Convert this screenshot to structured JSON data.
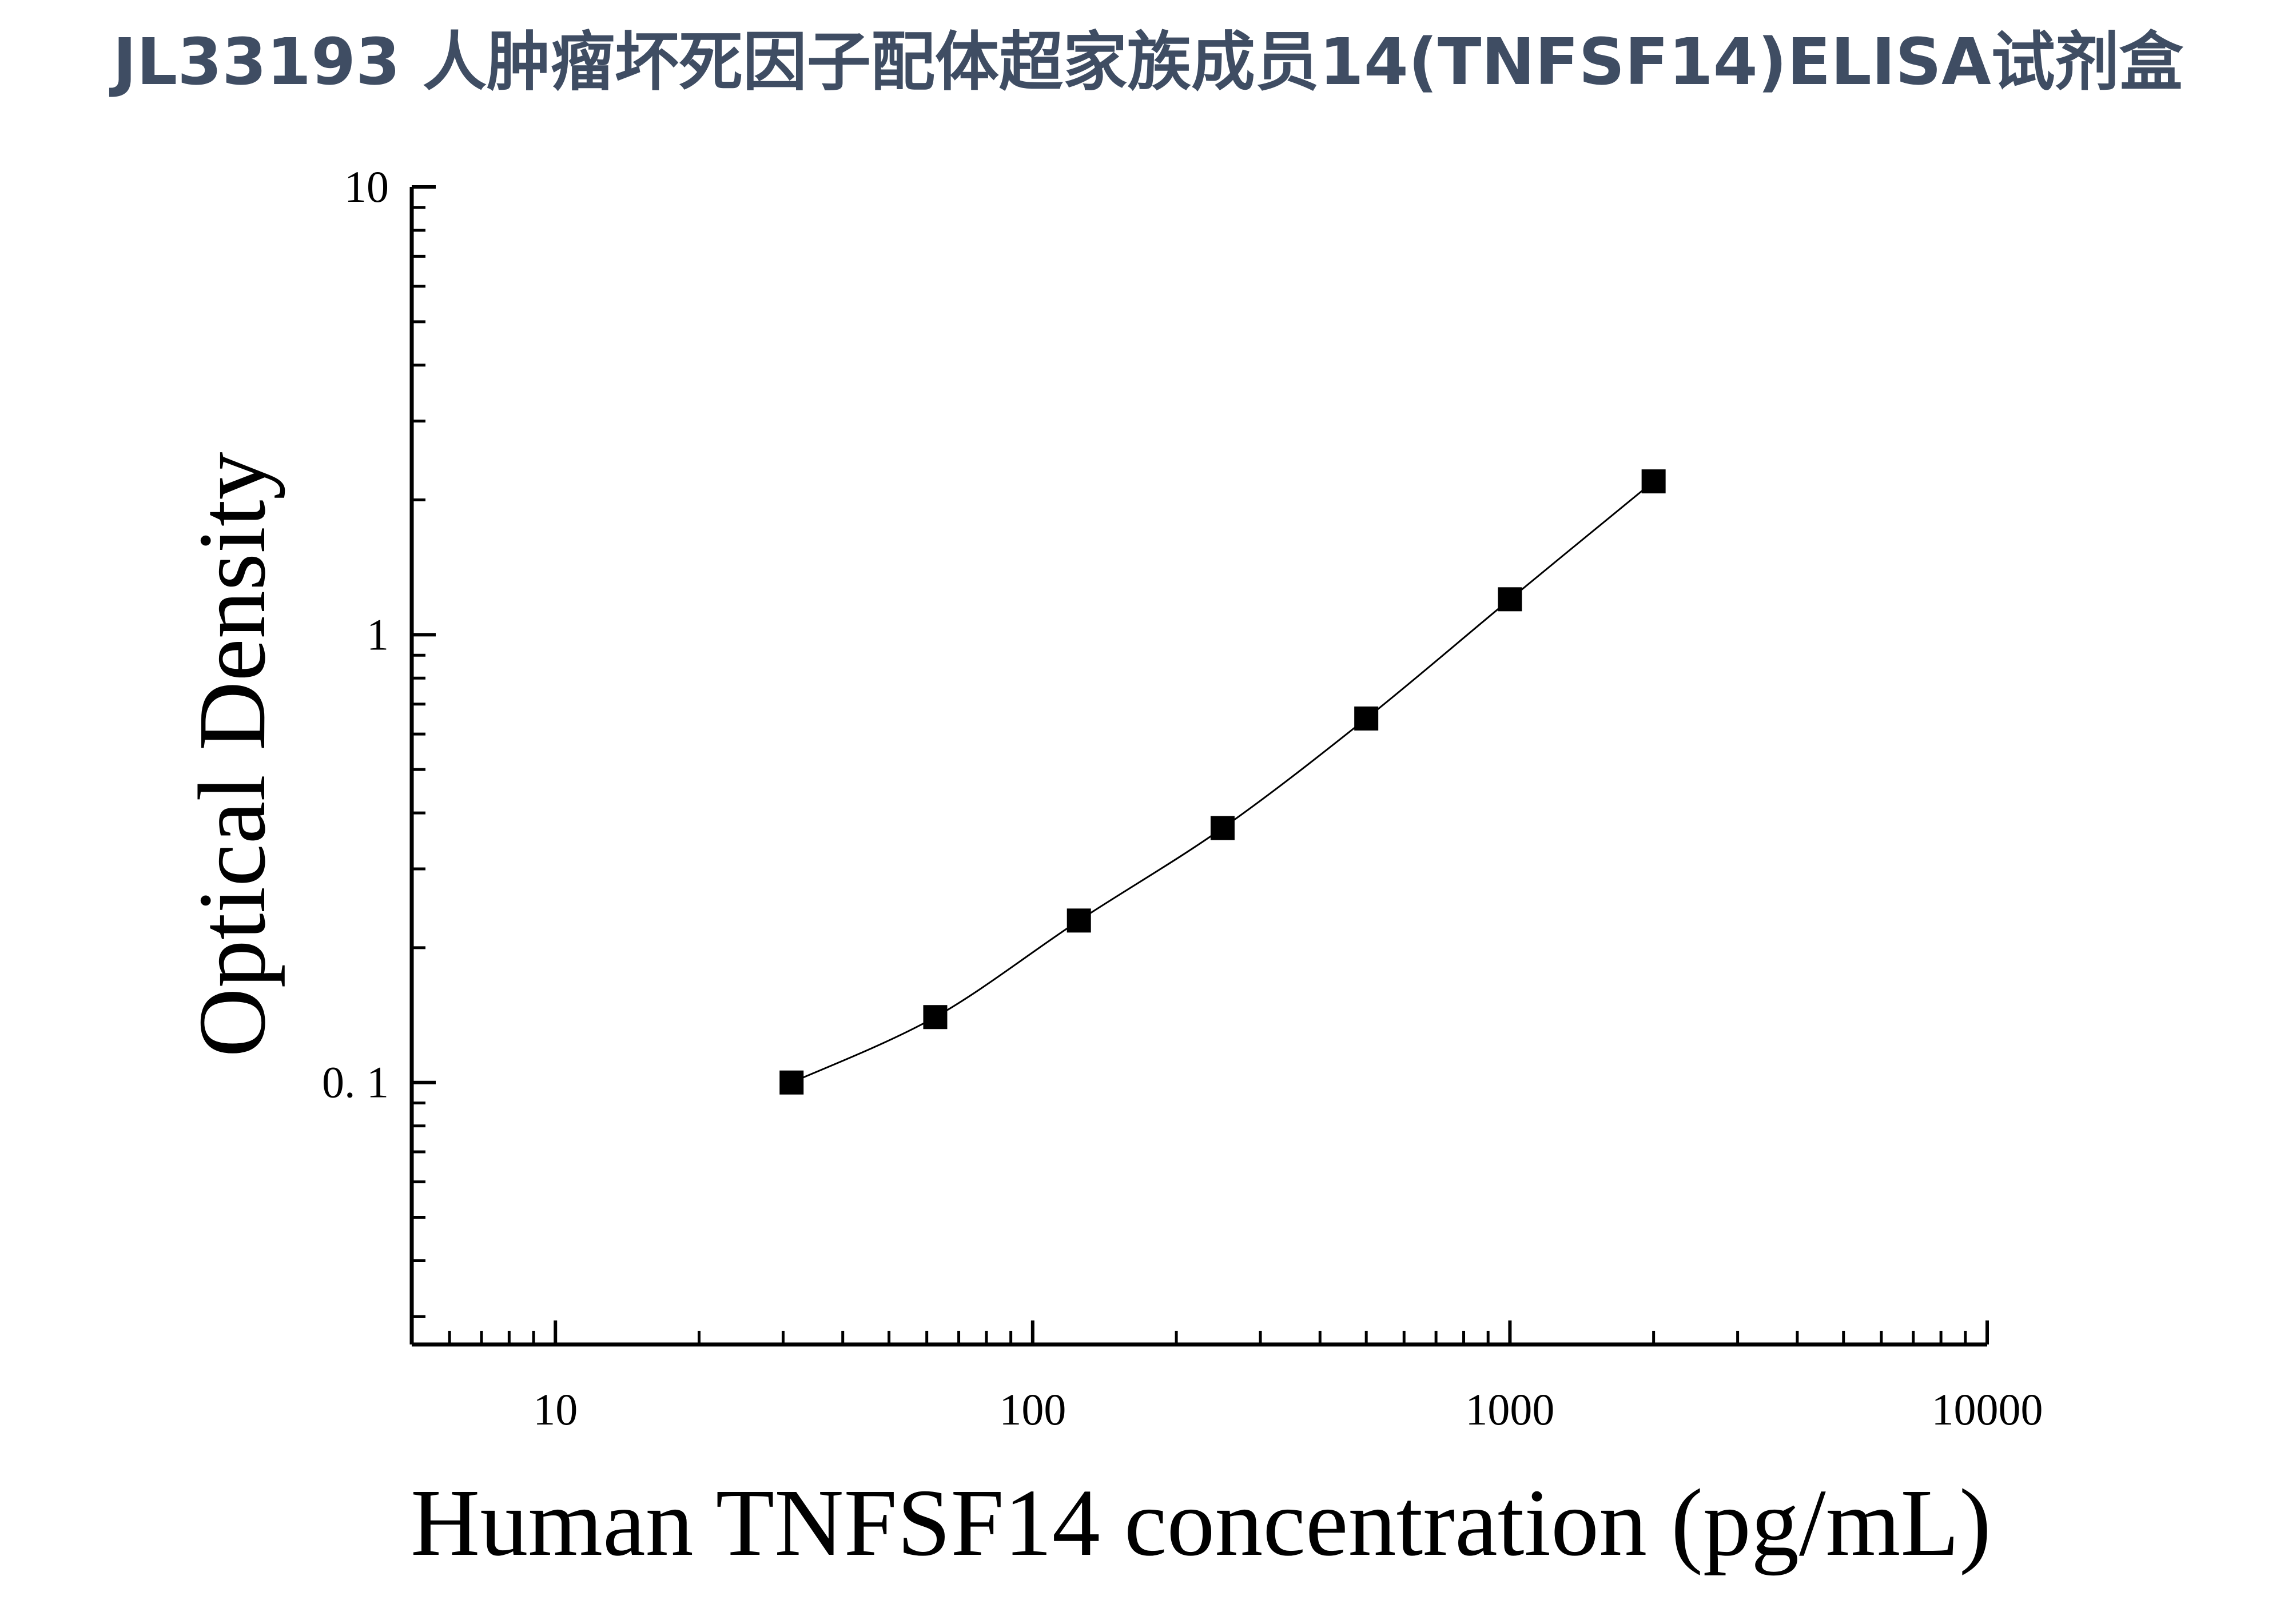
{
  "page": {
    "title": "JL33193 人肿瘤坏死因子配体超家族成员14(TNFSF14)ELISA试剂盒"
  },
  "chart_data": {
    "type": "scatter",
    "x_scale": "log",
    "y_scale": "log",
    "xlabel": "Human TNFSF14 concentration (pg/mL)",
    "ylabel": "Optical Density",
    "xlim": [
      5,
      10000
    ],
    "ylim": [
      0.026,
      10
    ],
    "x_ticks": [
      {
        "value": 10,
        "label": "10"
      },
      {
        "value": 100,
        "label": "100"
      },
      {
        "value": 1000,
        "label": "1000"
      },
      {
        "value": 10000,
        "label": "10000"
      }
    ],
    "y_ticks": [
      {
        "value": 0.1,
        "label": "0. 1"
      },
      {
        "value": 1,
        "label": "1"
      },
      {
        "value": 10,
        "label": "10"
      }
    ],
    "grid": false,
    "marker": "square",
    "marker_color": "#000000",
    "line_color": "#000000",
    "fit_curve": true,
    "series": [
      {
        "x": [
          31.25,
          62.5,
          125,
          250,
          500,
          1000,
          2000
        ],
        "y": [
          0.1,
          0.14,
          0.23,
          0.37,
          0.65,
          1.2,
          2.2
        ]
      }
    ]
  }
}
